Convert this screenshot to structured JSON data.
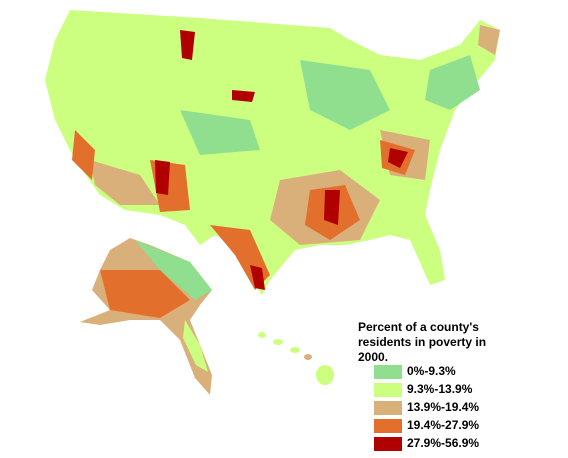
{
  "legend": {
    "title_lines": [
      "Percent of a county's",
      "residents in poverty in",
      "2000."
    ],
    "items": [
      {
        "label": "0%-9.3%",
        "color": "#8fdf8f"
      },
      {
        "label": "9.3%-13.9%",
        "color": "#ccff80"
      },
      {
        "label": "13.9%-19.4%",
        "color": "#d9b07a"
      },
      {
        "label": "19.4%-27.9%",
        "color": "#e2702c"
      },
      {
        "label": "27.9%-56.9%",
        "color": "#b00000"
      }
    ]
  }
}
